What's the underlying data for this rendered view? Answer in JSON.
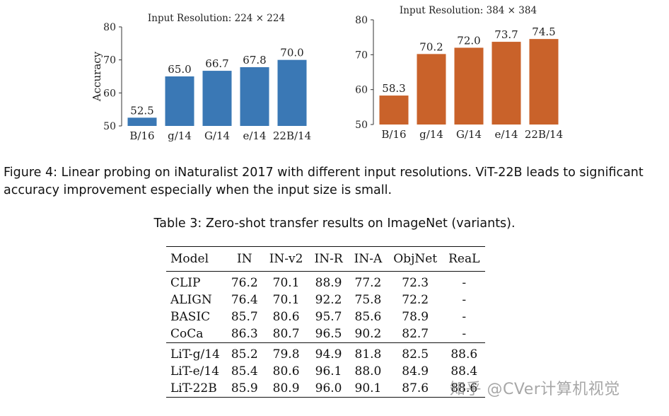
{
  "chart_data": [
    {
      "type": "bar",
      "title": "Input Resolution: 224 × 224",
      "ylabel": "Accuracy",
      "xlabel": "",
      "categories": [
        "B/16",
        "g/14",
        "G/14",
        "e/14",
        "22B/14"
      ],
      "values": [
        52.5,
        65.0,
        66.7,
        67.8,
        70.0
      ],
      "value_labels": [
        "52.5",
        "65.0",
        "66.7",
        "67.8",
        "70.0"
      ],
      "ylim": [
        50,
        80
      ],
      "yticks": [
        50,
        60,
        70,
        80
      ],
      "bar_color": "#3a78b5",
      "grid": false
    },
    {
      "type": "bar",
      "title": "Input Resolution: 384 × 384",
      "ylabel": "",
      "xlabel": "",
      "categories": [
        "B/16",
        "g/14",
        "G/14",
        "e/14",
        "22B/14"
      ],
      "values": [
        58.3,
        70.2,
        72.0,
        73.7,
        74.5
      ],
      "value_labels": [
        "58.3",
        "70.2",
        "72.0",
        "73.7",
        "74.5"
      ],
      "ylim": [
        50,
        80
      ],
      "yticks": [
        50,
        60,
        70,
        80
      ],
      "bar_color": "#c9622a",
      "grid": false
    }
  ],
  "figure_caption_line1": "Figure 4: Linear probing on iNaturalist 2017 with different input resolutions. ViT-22B leads to significant",
  "figure_caption_line2": "accuracy improvement especially when the input size is small.",
  "table_caption": "Table 3: Zero-shot transfer results on ImageNet (variants).",
  "table": {
    "headers": [
      "Model",
      "IN",
      "IN-v2",
      "IN-R",
      "IN-A",
      "ObjNet",
      "ReaL"
    ],
    "group1": [
      [
        "CLIP",
        "76.2",
        "70.1",
        "88.9",
        "77.2",
        "72.3",
        "-"
      ],
      [
        "ALIGN",
        "76.4",
        "70.1",
        "92.2",
        "75.8",
        "72.2",
        "-"
      ],
      [
        "BASIC",
        "85.7",
        "80.6",
        "95.7",
        "85.6",
        "78.9",
        "-"
      ],
      [
        "CoCa",
        "86.3",
        "80.7",
        "96.5",
        "90.2",
        "82.7",
        "-"
      ]
    ],
    "group2": [
      [
        "LiT-g/14",
        "85.2",
        "79.8",
        "94.9",
        "81.8",
        "82.5",
        "88.6"
      ],
      [
        "LiT-e/14",
        "85.4",
        "80.6",
        "96.1",
        "88.0",
        "84.9",
        "88.4"
      ],
      [
        "LiT-22B",
        "85.9",
        "80.9",
        "96.0",
        "90.1",
        "87.6",
        "88.6"
      ]
    ]
  },
  "watermark": "知乎 @CVer计算机视觉"
}
